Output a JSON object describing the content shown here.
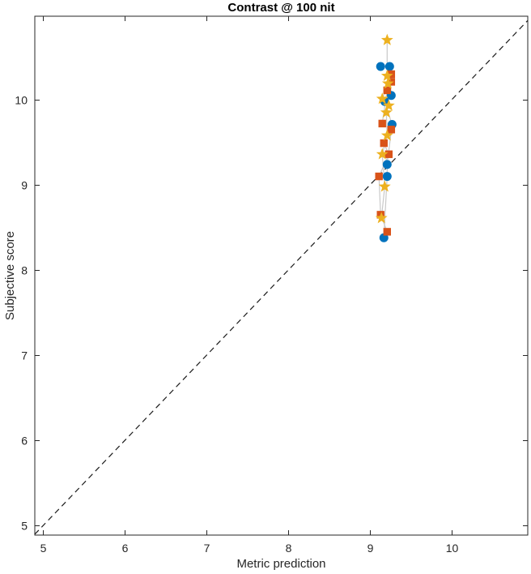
{
  "chart_data": {
    "type": "scatter",
    "title": "Contrast @ 100 nit",
    "xlabel": "Metric prediction",
    "ylabel": "Subjective score",
    "xlim": [
      4.9,
      10.93
    ],
    "ylim": [
      4.89,
      10.98
    ],
    "xticks": [
      5,
      6,
      7,
      8,
      9,
      10
    ],
    "yticks": [
      5,
      6,
      7,
      8,
      9,
      10
    ],
    "grid": false,
    "legend": "none",
    "axis_color": "#262626",
    "background": "#ffffff",
    "connector_color": "#c9c9c9",
    "identity_line": {
      "style": "dashed",
      "color": "#1a1a1a",
      "from": [
        4.9,
        4.9
      ],
      "to": [
        10.93,
        10.93
      ]
    },
    "series": [
      {
        "name": "series-circles",
        "marker": "circle",
        "color": "#0072BD",
        "points": [
          [
            9.13,
            10.39
          ],
          [
            9.24,
            10.39
          ],
          [
            9.26,
            10.05
          ],
          [
            9.18,
            9.98
          ],
          [
            9.27,
            9.71
          ],
          [
            9.21,
            9.24
          ],
          [
            9.21,
            9.1
          ],
          [
            9.17,
            8.38
          ]
        ]
      },
      {
        "name": "series-squares",
        "marker": "square",
        "color": "#D95319",
        "points": [
          [
            9.26,
            10.3
          ],
          [
            9.26,
            10.21
          ],
          [
            9.21,
            10.11
          ],
          [
            9.15,
            9.72
          ],
          [
            9.26,
            9.65
          ],
          [
            9.17,
            9.49
          ],
          [
            9.23,
            9.36
          ],
          [
            9.11,
            9.1
          ],
          [
            9.13,
            8.65
          ],
          [
            9.21,
            8.45
          ]
        ]
      },
      {
        "name": "series-stars",
        "marker": "pentagram",
        "color": "#EDB120",
        "points": [
          [
            9.21,
            10.7
          ],
          [
            9.21,
            10.28
          ],
          [
            9.22,
            10.19
          ],
          [
            9.15,
            10.01
          ],
          [
            9.23,
            9.93
          ],
          [
            9.2,
            9.85
          ],
          [
            9.21,
            9.58
          ],
          [
            9.15,
            9.36
          ],
          [
            9.18,
            8.98
          ],
          [
            9.14,
            8.61
          ]
        ]
      }
    ]
  }
}
